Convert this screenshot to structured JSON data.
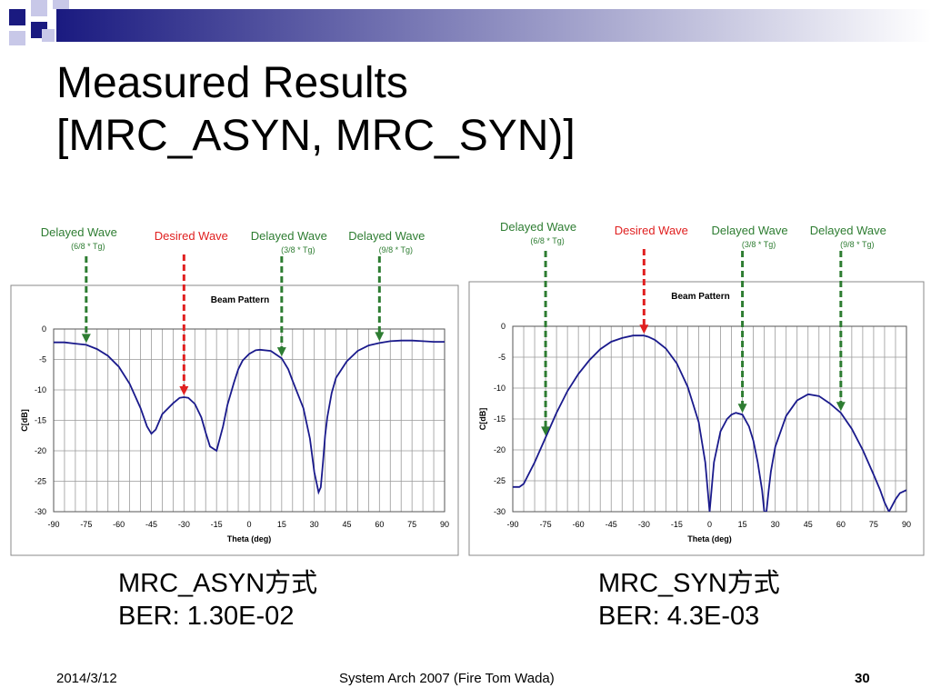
{
  "slide": {
    "title_line1": "Measured Results",
    "title_line2": "[MRC_ASYN, MRC_SYN)]",
    "footer_date": "2014/3/12",
    "footer_center": "System Arch 2007  (Fire Tom Wada)",
    "footer_page": "30"
  },
  "captions": [
    {
      "method": "MRC_ASYN方式",
      "ber": "BER: 1.30E-02"
    },
    {
      "method": "MRC_SYN方式",
      "ber": "BER: 4.3E-03"
    }
  ],
  "colors": {
    "series": "#1a1a8c",
    "desired": "#e02020",
    "delayed": "#2e7d32",
    "deco_dark": "#1a1a80",
    "deco_light": "#c8c8e8"
  },
  "chart_data": [
    {
      "type": "line",
      "title": "Beam Pattern",
      "xlabel": "Theta (deg)",
      "ylabel": "C[dB]",
      "xlim": [
        -90,
        90
      ],
      "ylim": [
        -30,
        0
      ],
      "xticks": [
        -90,
        -75,
        -60,
        -45,
        -30,
        -15,
        0,
        15,
        30,
        45,
        60,
        75,
        90
      ],
      "yticks": [
        0,
        -5,
        -10,
        -15,
        -20,
        -25,
        -30
      ],
      "grid": true,
      "series": [
        {
          "x": [
            -90,
            -85,
            -80,
            -75,
            -70,
            -65,
            -60,
            -55,
            -50,
            -47,
            -45,
            -43,
            -40,
            -35,
            -32,
            -30,
            -28,
            -25,
            -22,
            -20,
            -18,
            -15,
            -12,
            -10,
            -7,
            -5,
            -3,
            0,
            3,
            5,
            10,
            15,
            18,
            20,
            25,
            28,
            30,
            32,
            33,
            34,
            35,
            36,
            38,
            40,
            45,
            50,
            55,
            60,
            65,
            70,
            75,
            80,
            85,
            90
          ],
          "y": [
            -2.2,
            -2.2,
            -2.4,
            -2.6,
            -3.3,
            -4.4,
            -6.2,
            -9.0,
            -13.0,
            -16.0,
            -17.2,
            -16.5,
            -14.0,
            -12.2,
            -11.3,
            -11.2,
            -11.3,
            -12.3,
            -14.5,
            -17.0,
            -19.3,
            -20.0,
            -16.0,
            -12.5,
            -8.8,
            -6.6,
            -5.2,
            -4.1,
            -3.5,
            -3.4,
            -3.6,
            -4.8,
            -6.6,
            -8.5,
            -13.0,
            -18.0,
            -23.5,
            -26.8,
            -26.0,
            -22.0,
            -17.5,
            -14.5,
            -10.5,
            -8.0,
            -5.3,
            -3.6,
            -2.7,
            -2.3,
            -2.0,
            -1.9,
            -1.9,
            -2.0,
            -2.1,
            -2.1
          ]
        }
      ],
      "annotations": [
        {
          "label": "Delayed Wave",
          "sub": "(6/8 * Tg)",
          "x": -75,
          "kind": "delayed"
        },
        {
          "label": "Desired Wave",
          "sub": "",
          "x": -30,
          "kind": "desired"
        },
        {
          "label": "Delayed Wave",
          "sub": "(3/8 * Tg)",
          "x": 15,
          "kind": "delayed"
        },
        {
          "label": "Delayed Wave",
          "sub": "(9/8 * Tg)",
          "x": 60,
          "kind": "delayed"
        }
      ]
    },
    {
      "type": "line",
      "title": "Beam Pattern",
      "xlabel": "Theta (deg)",
      "ylabel": "C[dB]",
      "xlim": [
        -90,
        90
      ],
      "ylim": [
        -30,
        0
      ],
      "xticks": [
        -90,
        -75,
        -60,
        -45,
        -30,
        -15,
        0,
        15,
        30,
        45,
        60,
        75,
        90
      ],
      "yticks": [
        0,
        -5,
        -10,
        -15,
        -20,
        -25,
        -30
      ],
      "grid": true,
      "series": [
        {
          "x": [
            -90,
            -87,
            -85,
            -80,
            -75,
            -70,
            -65,
            -60,
            -55,
            -50,
            -45,
            -40,
            -35,
            -32,
            -30,
            -28,
            -25,
            -20,
            -15,
            -10,
            -5,
            -2,
            -1,
            0,
            1,
            2,
            5,
            8,
            10,
            12,
            15,
            18,
            20,
            22,
            24,
            25,
            26,
            27,
            28,
            30,
            35,
            40,
            45,
            50,
            55,
            60,
            65,
            70,
            75,
            78,
            80,
            82,
            85,
            87,
            90
          ],
          "y": [
            -26.0,
            -26.0,
            -25.5,
            -22.0,
            -18.0,
            -14.0,
            -10.5,
            -7.7,
            -5.5,
            -3.7,
            -2.5,
            -1.9,
            -1.5,
            -1.5,
            -1.5,
            -1.7,
            -2.2,
            -3.6,
            -6.0,
            -9.8,
            -15.5,
            -22.0,
            -26.0,
            -30.0,
            -26.0,
            -22.0,
            -17.0,
            -15.0,
            -14.3,
            -14.0,
            -14.3,
            -16.2,
            -18.5,
            -22.0,
            -26.5,
            -30.0,
            -30.0,
            -26.5,
            -23.5,
            -19.5,
            -14.5,
            -12.0,
            -11.0,
            -11.3,
            -12.5,
            -14.0,
            -16.6,
            -20.0,
            -24.0,
            -26.5,
            -28.5,
            -30.0,
            -28.0,
            -27.0,
            -26.5
          ]
        }
      ],
      "annotations": [
        {
          "label": "Delayed Wave",
          "sub": "(6/8 * Tg)",
          "x": -75,
          "kind": "delayed"
        },
        {
          "label": "Desired Wave",
          "sub": "",
          "x": -30,
          "kind": "desired"
        },
        {
          "label": "Delayed Wave",
          "sub": "(3/8 * Tg)",
          "x": 15,
          "kind": "delayed"
        },
        {
          "label": "Delayed Wave",
          "sub": "(9/8 * Tg)",
          "x": 60,
          "kind": "delayed"
        }
      ]
    }
  ]
}
